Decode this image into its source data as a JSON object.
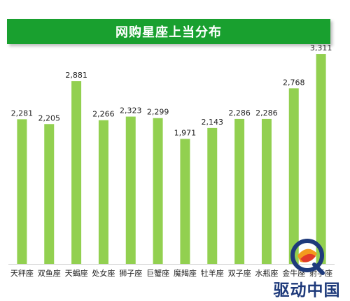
{
  "chart_data": {
    "type": "bar",
    "title": "网购星座上当分布",
    "categories": [
      "天秤座",
      "双鱼座",
      "天蝎座",
      "处女座",
      "狮子座",
      "巨蟹座",
      "魔羯座",
      "牡羊座",
      "双子座",
      "水瓶座",
      "金牛座",
      "射手座"
    ],
    "values": [
      2281,
      2205,
      2881,
      2266,
      2323,
      2299,
      1971,
      2143,
      2286,
      2286,
      2768,
      3311
    ],
    "data_labels": [
      "2,281",
      "2,205",
      "2,881",
      "2,266",
      "2,323",
      "2,299",
      "1,971",
      "2,143",
      "2,286",
      "2,286",
      "2,768",
      "3,311"
    ],
    "ylim": [
      0,
      3400
    ],
    "grid": false,
    "xlabel": "",
    "ylabel": "",
    "colors": {
      "bar": "#92D050",
      "banner": "#19A02F",
      "axis": "#D0D0D0"
    }
  },
  "watermark": {
    "text": "驱动中国",
    "logo_icon": "q-swirl-logo-icon"
  }
}
